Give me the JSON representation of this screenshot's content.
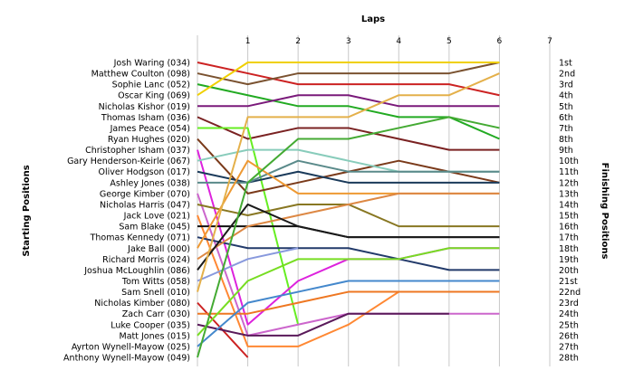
{
  "chart_data": {
    "type": "line",
    "title": "",
    "xlabel": "Laps",
    "ylabel_left": "Starting Positions",
    "ylabel_right": "Finishing Positions",
    "x": [
      1,
      2,
      3,
      4,
      5,
      6,
      7
    ],
    "xlim": [
      0,
      7
    ],
    "ylim": [
      1,
      28
    ],
    "grid": true,
    "starting_order": [
      "Josh Waring (034)",
      "Matthew Coulton (098)",
      "Sophie Lanc (052)",
      "Oscar King (069)",
      "Nicholas Kishor (019)",
      "Thomas Isham (036)",
      "James Peace (054)",
      "Ryan Hughes (020)",
      "Christopher Isham (037)",
      "Gary Henderson-Keirle (067)",
      "Oliver Hodgson (017)",
      "Ashley Jones (038)",
      "George Kimber (070)",
      "Nicholas Harris (047)",
      "Jack Love (021)",
      "Sam Blake (045)",
      "Thomas Kennedy (071)",
      "Jake Ball (000)",
      "Richard Morris (024)",
      "Joshua McLoughlin (086)",
      "Tom Witts (058)",
      "Sam Snell (010)",
      "Nicholas Kimber (080)",
      "Zach Carr (030)",
      "Luke Cooper (035)",
      "Matt Jones (015)",
      "Ayrton Wynell-Mayow (025)",
      "Anthony Wynell-Mayow (049)"
    ],
    "finishing_labels": [
      "1st",
      "2nd",
      "3rd",
      "4th",
      "5th",
      "6th",
      "7th",
      "8th",
      "9th",
      "10th",
      "11th",
      "12th",
      "13th",
      "14th",
      "15th",
      "16th",
      "17th",
      "18th",
      "19th",
      "20th",
      "21st",
      "22nd",
      "23rd",
      "24th",
      "25th",
      "26th",
      "27th",
      "28th"
    ],
    "series": [
      {
        "color": "#cc2222",
        "positions": [
          1,
          2,
          3,
          3,
          3,
          3,
          4
        ]
      },
      {
        "color": "#7a5230",
        "positions": [
          2,
          3,
          2,
          2,
          2,
          2,
          1
        ]
      },
      {
        "color": "#22aa22",
        "positions": [
          3,
          4,
          5,
          5,
          6,
          6,
          8
        ]
      },
      {
        "color": "#f0d000",
        "positions": [
          4,
          1,
          1,
          1,
          1,
          1,
          1
        ]
      },
      {
        "color": "#7a1a7a",
        "positions": [
          5,
          5,
          4,
          4,
          5,
          5,
          5
        ]
      },
      {
        "color": "#7a2222",
        "positions": [
          6,
          8,
          7,
          7,
          8,
          9,
          9
        ]
      },
      {
        "color": "#66ee22",
        "positions": [
          7,
          7,
          25
        ]
      },
      {
        "color": "#7a3a1a",
        "positions": [
          8,
          13,
          12,
          11,
          10,
          11,
          12
        ]
      },
      {
        "color": "#dd22dd",
        "positions": [
          9,
          25,
          21,
          19,
          19,
          18,
          18
        ]
      },
      {
        "color": "#88ccbb",
        "positions": [
          10,
          9,
          9,
          10,
          11,
          11,
          11
        ]
      },
      {
        "color": "#1a3a5a",
        "positions": [
          11,
          12,
          11,
          12,
          12,
          12,
          12
        ]
      },
      {
        "color": "#5a8a8a",
        "positions": [
          12,
          12,
          10,
          11,
          11,
          11,
          11
        ]
      },
      {
        "color": "#cc66cc",
        "positions": [
          13,
          26,
          25,
          24,
          24,
          24,
          24
        ]
      },
      {
        "color": "#887722",
        "positions": [
          14,
          15,
          14,
          14,
          16,
          16,
          16
        ]
      },
      {
        "color": "#ff8833",
        "positions": [
          15,
          27,
          27,
          25,
          22,
          22,
          22
        ]
      },
      {
        "color": "#111111",
        "positions": [
          16,
          16,
          16,
          17,
          17,
          17,
          17
        ]
      },
      {
        "color": "#223a6a",
        "positions": [
          17,
          18,
          18,
          18,
          19,
          20,
          20
        ]
      },
      {
        "color": "#ee9933",
        "positions": [
          18,
          10,
          13,
          13,
          13,
          13,
          13
        ]
      },
      {
        "color": "#dd8844",
        "positions": [
          19,
          16,
          15,
          14,
          13,
          13,
          13
        ]
      },
      {
        "color": "#1a1a1a",
        "positions": [
          20,
          14,
          16,
          17,
          17,
          17,
          17
        ]
      },
      {
        "color": "#8899dd",
        "positions": [
          21,
          19,
          18
        ]
      },
      {
        "color": "#e4b04a",
        "positions": [
          22,
          6,
          6,
          6,
          4,
          4,
          2
        ]
      },
      {
        "color": "#cc2222",
        "positions": [
          23,
          28
        ]
      },
      {
        "color": "#ee7722",
        "positions": [
          24,
          24,
          23,
          22,
          22,
          22,
          22
        ]
      },
      {
        "color": "#5a1a5a",
        "positions": [
          25,
          26,
          26,
          24,
          24,
          24
        ]
      },
      {
        "color": "#77dd22",
        "positions": [
          26,
          21,
          19,
          19,
          19,
          18,
          18
        ]
      },
      {
        "color": "#4488cc",
        "positions": [
          27,
          23,
          22,
          21,
          21,
          21,
          21
        ]
      },
      {
        "color": "#44aa33",
        "positions": [
          28,
          12,
          8,
          8,
          7,
          6,
          7
        ]
      }
    ]
  }
}
